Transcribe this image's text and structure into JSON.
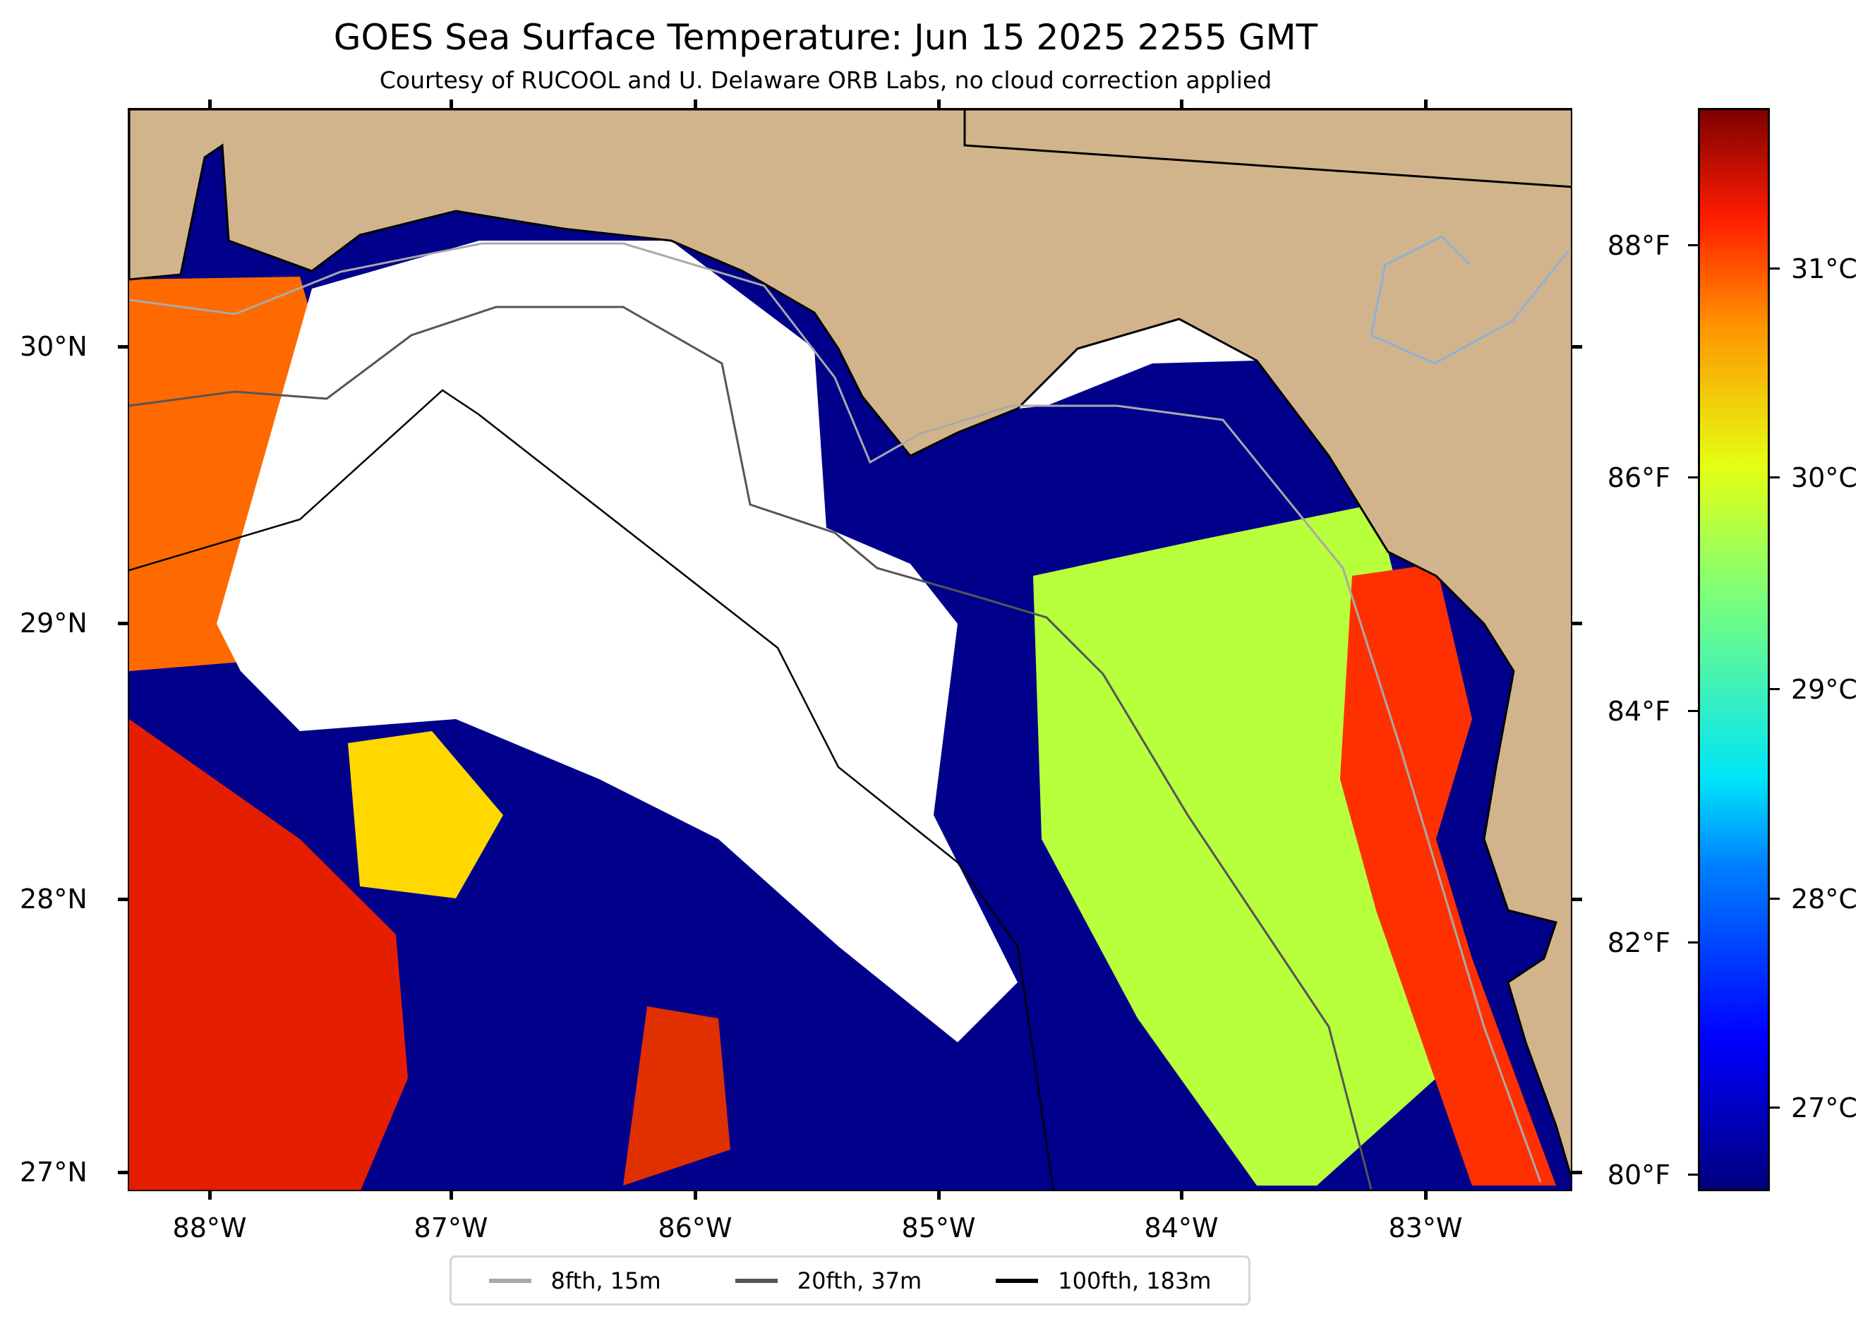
{
  "title": "GOES Sea Surface Temperature: Jun 15 2025 2255 GMT",
  "subtitle": "Courtesy of RUCOOL and U. Delaware ORB Labs, no cloud correction applied",
  "chart_data": {
    "type": "heatmap",
    "title": "GOES Sea Surface Temperature: Jun 15 2025 2255 GMT",
    "subtitle": "Courtesy of RUCOOL and U. Delaware ORB Labs, no cloud correction applied",
    "x_ticks": [
      "88°W",
      "87°W",
      "86°W",
      "85°W",
      "84°W",
      "83°W"
    ],
    "y_ticks": [
      "30°N",
      "29°N",
      "28°N",
      "27°N"
    ],
    "xlim": [
      -88.33,
      -82.4
    ],
    "ylim": [
      26.93,
      30.86
    ],
    "colorbar": {
      "colormap": "jet",
      "range_C": [
        26.6,
        31.6
      ],
      "ticks_F": [
        "88°F",
        "86°F",
        "84°F",
        "82°F",
        "80°F"
      ],
      "ticks_C": [
        "31°C",
        "30°C",
        "29°C",
        "28°C",
        "27°C"
      ]
    },
    "colors": {
      "land": "#d2b48c",
      "cloud": "#ffffff",
      "cold": "#00008b"
    },
    "legend": {
      "placement": "bottom-center",
      "items": [
        {
          "label": "8fth, 15m",
          "color": "#a9a9a9"
        },
        {
          "label": "20fth, 37m",
          "color": "#555555"
        },
        {
          "label": "100fth, 183m",
          "color": "#000000"
        }
      ]
    }
  }
}
